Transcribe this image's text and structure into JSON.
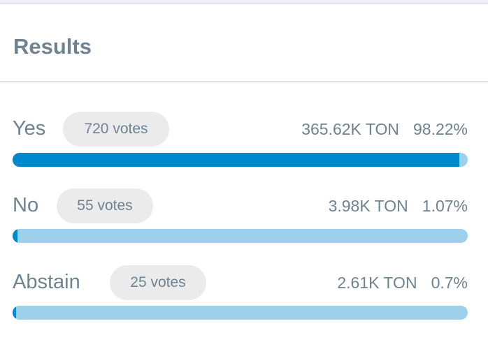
{
  "header": {
    "title": "Results"
  },
  "colors": {
    "fill": "#0088cc",
    "track": "#9dd0ea"
  },
  "results": [
    {
      "label": "Yes",
      "votes": "720 votes",
      "amount": "365.62K TON",
      "percent_label": "98.22%",
      "percent": 98.22
    },
    {
      "label": "No",
      "votes": "55 votes",
      "amount": "3.98K TON",
      "percent_label": "1.07%",
      "percent": 1.07
    },
    {
      "label": "Abstain",
      "votes": "25 votes",
      "amount": "2.61K TON",
      "percent_label": "0.7%",
      "percent": 0.7
    }
  ]
}
